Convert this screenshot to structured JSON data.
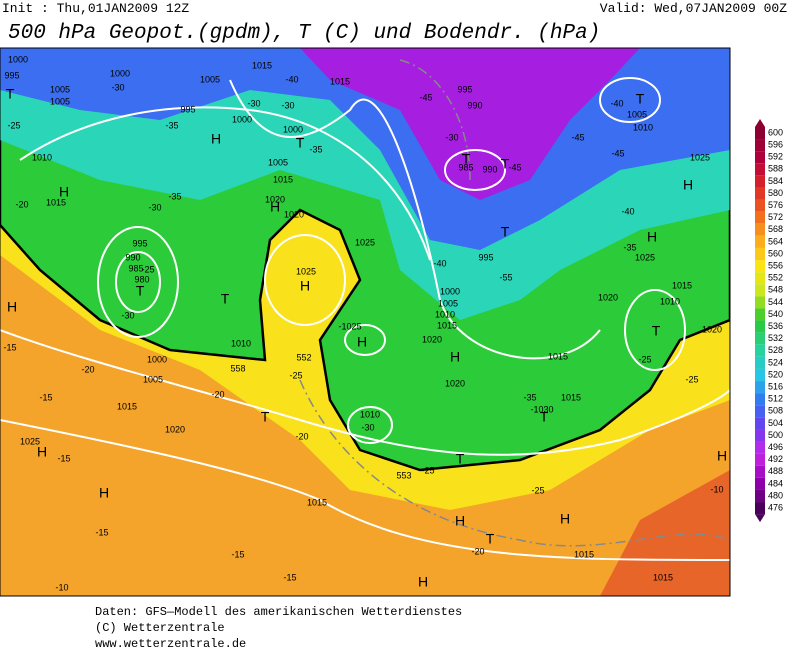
{
  "header": {
    "init": "Init : Thu,01JAN2009 12Z",
    "valid": "Valid: Wed,07JAN2009 00Z",
    "title": "500 hPa Geopot.(gpdm), T (C) und Bodendr. (hPa)"
  },
  "map": {
    "labels": [
      "1000",
      "995",
      "T",
      "-25",
      "1005",
      "1005",
      "1000",
      "-30",
      "1005",
      "1015",
      "-40",
      "-30",
      "-30",
      "995",
      "1000",
      "-35",
      "H",
      "1000",
      "T",
      "1015",
      "-35",
      "-45",
      "995",
      "990",
      "-30",
      "T",
      "985",
      "990",
      "T",
      "-45",
      "-45",
      "-40",
      "T",
      "1005",
      "1010",
      "-45",
      "1025",
      "H",
      "-40",
      "-35",
      "1025",
      "H",
      "T",
      "995",
      "-40",
      "-55",
      "1020",
      "1015",
      "1010",
      "T",
      "1020",
      "-25",
      "-25",
      "1010",
      "H",
      "1015",
      "-20",
      "-35",
      "-30",
      "995",
      "990",
      "985",
      "980",
      "T",
      "-25",
      "-30",
      "1005",
      "1015",
      "1020",
      "H",
      "1020",
      "1025",
      "1025",
      "H",
      "T",
      "1010",
      "-1025",
      "H",
      "1020",
      "H",
      "552",
      "558",
      "H",
      "-15",
      "-20",
      "-15",
      "1000",
      "1005",
      "1015",
      "-20",
      "T",
      "-25",
      "1020",
      "-20",
      "-30",
      "1010",
      "1020",
      "-35",
      "-1030",
      "T",
      "1015",
      "1015",
      "T",
      "-25",
      "553",
      "1025",
      "H",
      "-15",
      "H",
      "1015",
      "-15",
      "H",
      "T",
      "H",
      "-20",
      "-25",
      "-15",
      "1015",
      "-15",
      "-10",
      "H",
      "1015",
      "-10",
      "H",
      "1000",
      "1005",
      "1010",
      "1015"
    ]
  },
  "colorbar": {
    "labels": [
      600,
      596,
      592,
      588,
      584,
      580,
      576,
      572,
      568,
      564,
      560,
      556,
      552,
      548,
      544,
      540,
      536,
      532,
      528,
      524,
      520,
      516,
      512,
      508,
      504,
      500,
      496,
      492,
      488,
      484,
      480,
      476
    ]
  },
  "footer": {
    "lines": [
      "Daten: GFS—Modell des amerikanischen Wetterdienstes",
      "(C) Wetterzentrale",
      "www.wetterzentrale.de"
    ]
  }
}
